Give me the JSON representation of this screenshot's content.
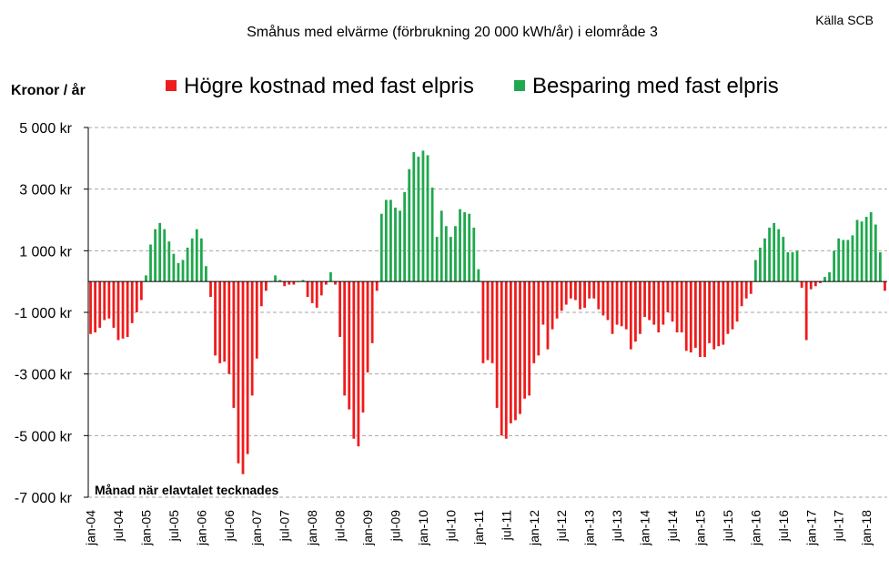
{
  "chart_data": {
    "type": "bar",
    "title": "Småhus med elvärme (förbrukning 20 000 kWh/år) i elområde 3",
    "source": "Källa SCB",
    "ylabel": "Kronor / år",
    "xlabel": "Månad när elavtalet tecknades",
    "ylim": [
      -7000,
      5000
    ],
    "yticks": [
      5000,
      3000,
      1000,
      -1000,
      -3000,
      -5000,
      -7000
    ],
    "ytick_labels": [
      "5 000 kr",
      "3 000 kr",
      "1 000 kr",
      "-1 000 kr",
      "-3 000 kr",
      "-5 000 kr",
      "-7 000 kr"
    ],
    "x_start": "2004-01",
    "xtick_labels": [
      "jan-04",
      "jul-04",
      "jan-05",
      "jul-05",
      "jan-06",
      "jul-06",
      "jan-07",
      "jul-07",
      "jan-08",
      "jul-08",
      "jan-09",
      "jul-09",
      "jan-10",
      "jul-10",
      "jan-11",
      "jul-11",
      "jan-12",
      "jul-12",
      "jan-13",
      "jul-13",
      "jan-14",
      "jul-14",
      "jan-15",
      "jul-15",
      "jan-16",
      "jul-16",
      "jan-17",
      "jul-17",
      "jan-18"
    ],
    "legend": {
      "position": "top",
      "entries": [
        {
          "label": "Högre kostnad med fast elpris",
          "color": "#ee1c1c"
        },
        {
          "label": "Besparing med fast elpris",
          "color": "#1fa84d"
        }
      ]
    },
    "colors": {
      "negative": "#ee1c1c",
      "positive": "#1fa84d",
      "grid": "#a6a6a6"
    },
    "grid": true,
    "series": [
      {
        "values": [
          -1700,
          -1650,
          -1500,
          -1250,
          -1200,
          -1500,
          -1900,
          -1850,
          -1800,
          -1350,
          -1000,
          -600,
          200,
          1200,
          1700,
          1900,
          1700,
          1300,
          900,
          600,
          700,
          1100,
          1400,
          1700,
          1400,
          500,
          -500,
          -2400,
          -2650,
          -2600,
          -3000,
          -4100,
          -5900,
          -6250,
          -5600,
          -3700,
          -2500,
          -800,
          -300,
          0,
          200,
          50,
          -150,
          -100,
          -100,
          0,
          50,
          -500,
          -700,
          -850,
          -450,
          -100,
          300,
          -100,
          -1800,
          -3700,
          -4150,
          -5100,
          -5350,
          -4250,
          -2950,
          -2000,
          -300,
          2200,
          2650,
          2650,
          2400,
          2300,
          2900,
          3650,
          4200,
          4050,
          4250,
          4100,
          3050,
          1450,
          2300,
          1800,
          1450,
          1800,
          2350,
          2250,
          2200,
          1750,
          400,
          -2650,
          -2550,
          -2650,
          -4100,
          -5000,
          -5100,
          -4600,
          -4500,
          -4300,
          -3800,
          -3700,
          -2650,
          -2400,
          -1400,
          -2200,
          -1550,
          -1200,
          -950,
          -750,
          -550,
          -600,
          -900,
          -850,
          -550,
          -550,
          -900,
          -1100,
          -1250,
          -1700,
          -1400,
          -1450,
          -1550,
          -2200,
          -1950,
          -1700,
          -1150,
          -1250,
          -1400,
          -1650,
          -1400,
          -1000,
          -1300,
          -1650,
          -1650,
          -2250,
          -2300,
          -2150,
          -2450,
          -2450,
          -2000,
          -2200,
          -2100,
          -2050,
          -1700,
          -1550,
          -1300,
          -800,
          -550,
          -400,
          700,
          1100,
          1400,
          1750,
          1900,
          1700,
          1450,
          950,
          950,
          1000,
          -200,
          -1900,
          -250,
          -150,
          -50,
          150,
          300,
          1000,
          1400,
          1350,
          1350,
          1500,
          2000,
          1950,
          2100,
          2250,
          1850,
          950,
          -300
        ]
      }
    ]
  }
}
